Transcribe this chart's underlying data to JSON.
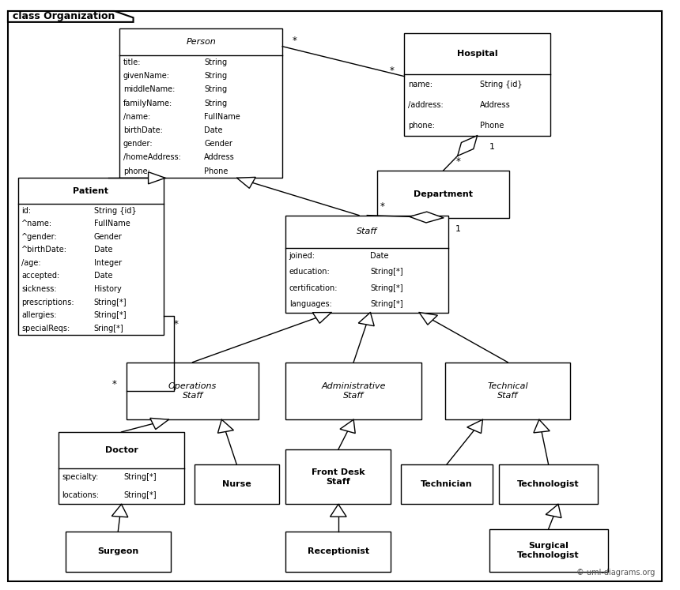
{
  "bg_color": "#ffffff",
  "title": "class Organization",
  "font_size": 7.5,
  "class_boxes": {
    "Person": [
      0.175,
      0.645,
      0.24,
      0.3
    ],
    "Hospital": [
      0.595,
      0.73,
      0.215,
      0.205
    ],
    "Patient": [
      0.025,
      0.33,
      0.215,
      0.315
    ],
    "Department": [
      0.555,
      0.565,
      0.195,
      0.095
    ],
    "Staff": [
      0.42,
      0.375,
      0.24,
      0.195
    ],
    "OperationsStaff": [
      0.185,
      0.16,
      0.195,
      0.115
    ],
    "AdministrativeStaff": [
      0.42,
      0.16,
      0.2,
      0.115
    ],
    "TechnicalStaff": [
      0.655,
      0.16,
      0.185,
      0.115
    ],
    "Doctor": [
      0.085,
      -0.01,
      0.185,
      0.145
    ],
    "Nurse": [
      0.285,
      -0.01,
      0.125,
      0.08
    ],
    "FrontDeskStaff": [
      0.42,
      -0.01,
      0.155,
      0.11
    ],
    "Technician": [
      0.59,
      -0.01,
      0.135,
      0.08
    ],
    "Technologist": [
      0.735,
      -0.01,
      0.145,
      0.08
    ],
    "Surgeon": [
      0.095,
      -0.145,
      0.155,
      0.08
    ],
    "Receptionist": [
      0.42,
      -0.145,
      0.155,
      0.08
    ],
    "SurgicalTechnologist": [
      0.72,
      -0.145,
      0.175,
      0.085
    ]
  },
  "class_attrs": {
    "Person": {
      "name": "Person",
      "italic": true,
      "attrs": [
        [
          "title:",
          "String"
        ],
        [
          "givenName:",
          "String"
        ],
        [
          "middleName:",
          "String"
        ],
        [
          "familyName:",
          "String"
        ],
        [
          "/name:",
          "FullName"
        ],
        [
          "birthDate:",
          "Date"
        ],
        [
          "gender:",
          "Gender"
        ],
        [
          "/homeAddress:",
          "Address"
        ],
        [
          "phone:",
          "Phone"
        ]
      ]
    },
    "Hospital": {
      "name": "Hospital",
      "italic": false,
      "attrs": [
        [
          "name:",
          "String {id}"
        ],
        [
          "/address:",
          "Address"
        ],
        [
          "phone:",
          "Phone"
        ]
      ]
    },
    "Patient": {
      "name": "Patient",
      "italic": false,
      "attrs": [
        [
          "id:",
          "String {id}"
        ],
        [
          "^name:",
          "FullName"
        ],
        [
          "^gender:",
          "Gender"
        ],
        [
          "^birthDate:",
          "Date"
        ],
        [
          "/age:",
          "Integer"
        ],
        [
          "accepted:",
          "Date"
        ],
        [
          "sickness:",
          "History"
        ],
        [
          "prescriptions:",
          "String[*]"
        ],
        [
          "allergies:",
          "String[*]"
        ],
        [
          "specialReqs:",
          "Sring[*]"
        ]
      ]
    },
    "Department": {
      "name": "Department",
      "italic": false,
      "attrs": []
    },
    "Staff": {
      "name": "Staff",
      "italic": true,
      "attrs": [
        [
          "joined:",
          "Date"
        ],
        [
          "education:",
          "String[*]"
        ],
        [
          "certification:",
          "String[*]"
        ],
        [
          "languages:",
          "String[*]"
        ]
      ]
    },
    "OperationsStaff": {
      "name": "Operations\nStaff",
      "italic": true,
      "attrs": []
    },
    "AdministrativeStaff": {
      "name": "Administrative\nStaff",
      "italic": true,
      "attrs": []
    },
    "TechnicalStaff": {
      "name": "Technical\nStaff",
      "italic": true,
      "attrs": []
    },
    "Doctor": {
      "name": "Doctor",
      "italic": false,
      "attrs": [
        [
          "specialty:",
          "String[*]"
        ],
        [
          "locations:",
          "String[*]"
        ]
      ]
    },
    "Nurse": {
      "name": "Nurse",
      "italic": false,
      "attrs": []
    },
    "FrontDeskStaff": {
      "name": "Front Desk\nStaff",
      "italic": false,
      "attrs": []
    },
    "Technician": {
      "name": "Technician",
      "italic": false,
      "attrs": []
    },
    "Technologist": {
      "name": "Technologist",
      "italic": false,
      "attrs": []
    },
    "Surgeon": {
      "name": "Surgeon",
      "italic": false,
      "attrs": []
    },
    "Receptionist": {
      "name": "Receptionist",
      "italic": false,
      "attrs": []
    },
    "SurgicalTechnologist": {
      "name": "Surgical\nTechnologist",
      "italic": false,
      "attrs": []
    }
  }
}
